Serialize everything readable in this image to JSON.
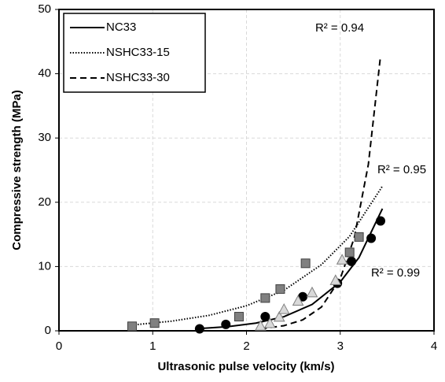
{
  "chart_data": {
    "type": "scatter",
    "x_label": "Ultrasonic pulse velocity (km/s)",
    "y_label": "Compressive strength (MPa)",
    "xlim": [
      0,
      4
    ],
    "xticks": [
      0,
      1,
      2,
      3,
      4
    ],
    "ylim": [
      0,
      50
    ],
    "yticks": [
      0,
      10,
      20,
      30,
      40,
      50
    ],
    "grid": true,
    "legend": "upper left",
    "series": [
      {
        "name": "NC33",
        "marker": "circle",
        "color": "#000000",
        "edge": "#000000",
        "line": "solid",
        "line_color": "#000000",
        "x": [
          1.5,
          1.78,
          2.2,
          2.6,
          2.97,
          3.12,
          3.33,
          3.43
        ],
        "y": [
          0.3,
          1.0,
          2.2,
          5.3,
          7.4,
          10.8,
          14.4,
          17.1
        ],
        "fit_x": [
          1.5,
          1.8,
          2.1,
          2.4,
          2.7,
          3.0,
          3.2,
          3.45
        ],
        "fit_y": [
          0.35,
          0.65,
          1.2,
          2.2,
          4.1,
          7.6,
          11.4,
          19.0
        ]
      },
      {
        "name": "NSHC33-15",
        "marker": "square",
        "color": "#808080",
        "edge": "#404040",
        "line": "dotted",
        "line_color": "#000000",
        "x": [
          0.78,
          1.02,
          1.92,
          2.2,
          2.36,
          2.63,
          3.1,
          3.2
        ],
        "y": [
          0.7,
          1.2,
          2.2,
          5.1,
          6.5,
          10.5,
          12.2,
          14.6
        ],
        "fit_x": [
          0.78,
          1.2,
          1.6,
          2.0,
          2.4,
          2.8,
          3.1,
          3.45
        ],
        "fit_y": [
          0.9,
          1.5,
          2.4,
          3.9,
          6.3,
          10.3,
          14.7,
          22.5
        ]
      },
      {
        "name": "NSHC33-30",
        "marker": "triangle",
        "color": "#d9d9d9",
        "edge": "#7f7f7f",
        "line": "dashed",
        "line_color": "#000000",
        "x": [
          2.15,
          2.25,
          2.35,
          2.4,
          2.55,
          2.7,
          2.95,
          3.02
        ],
        "y": [
          0.7,
          1.1,
          2.1,
          3.3,
          4.6,
          5.9,
          7.8,
          11.0
        ],
        "fit_x": [
          2.15,
          2.4,
          2.6,
          2.8,
          3.0,
          3.15,
          3.3,
          3.43
        ],
        "fit_y": [
          0.3,
          0.8,
          1.7,
          3.7,
          8.1,
          14.5,
          25.9,
          42.8
        ]
      }
    ],
    "annotations": [
      "R² = 0.94",
      "R² = 0.95",
      "R² = 0.99"
    ]
  }
}
